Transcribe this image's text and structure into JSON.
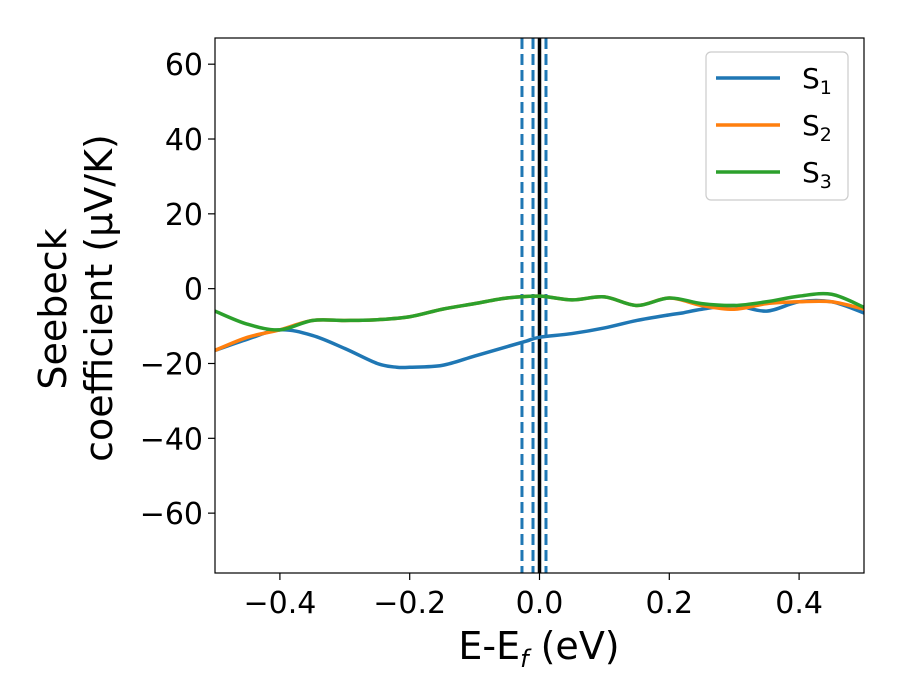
{
  "chart_data": {
    "type": "line",
    "xlabel_parts": [
      "E-E",
      "f",
      " (eV)"
    ],
    "ylabel_lines": [
      "Seebeck",
      "coefficient  (μV/K)"
    ],
    "xlim": [
      -0.5,
      0.5
    ],
    "ylim": [
      -76,
      67
    ],
    "xticks": [
      -0.4,
      -0.2,
      0.0,
      0.2,
      0.4
    ],
    "xtick_labels": [
      "−0.4",
      "−0.2",
      "0.0",
      "0.2",
      "0.4"
    ],
    "yticks": [
      -60,
      -40,
      -20,
      0,
      20,
      40,
      60
    ],
    "ytick_labels": [
      "−60",
      "−40",
      "−20",
      "0",
      "20",
      "40",
      "60"
    ],
    "grid": false,
    "legend_position": "top-right",
    "vlines": [
      {
        "x": 0.0,
        "style": "solid",
        "color": "#000000"
      },
      {
        "x": -0.027,
        "style": "dashed",
        "color": "#1f77b4"
      },
      {
        "x": -0.01,
        "style": "dashed",
        "color": "#1f77b4"
      },
      {
        "x": 0.01,
        "style": "dashed",
        "color": "#1f77b4"
      }
    ],
    "series": [
      {
        "name": "S",
        "subscript": "1",
        "color": "#1f77b4",
        "x": [
          -0.5,
          -0.45,
          -0.4,
          -0.35,
          -0.3,
          -0.25,
          -0.22,
          -0.2,
          -0.15,
          -0.1,
          -0.05,
          -0.02,
          0.0,
          0.05,
          0.1,
          0.15,
          0.2,
          0.22,
          0.25,
          0.3,
          0.35,
          0.4,
          0.45,
          0.5
        ],
        "y": [
          -16.5,
          -13.5,
          -11.0,
          -12.5,
          -16.0,
          -20.0,
          -21.0,
          -21.0,
          -20.5,
          -18.0,
          -15.5,
          -14.0,
          -13.0,
          -12.0,
          -10.5,
          -8.5,
          -7.0,
          -6.5,
          -5.5,
          -4.5,
          -6.0,
          -3.5,
          -3.5,
          -6.5
        ]
      },
      {
        "name": "S",
        "subscript": "2",
        "color": "#ff7f0e",
        "x": [
          -0.5,
          -0.45,
          -0.4,
          -0.35,
          -0.3,
          -0.25,
          -0.2,
          -0.15,
          -0.1,
          -0.05,
          0.0,
          0.05,
          0.1,
          0.15,
          0.2,
          0.25,
          0.3,
          0.35,
          0.4,
          0.45,
          0.5
        ],
        "y": [
          -16.5,
          -13.0,
          -11.0,
          -8.5,
          -8.5,
          -8.3,
          -7.5,
          -5.5,
          -4.0,
          -2.5,
          -2.0,
          -3.0,
          -2.2,
          -4.5,
          -2.5,
          -4.5,
          -5.5,
          -4.0,
          -3.5,
          -3.5,
          -5.5
        ]
      },
      {
        "name": "S",
        "subscript": "3",
        "color": "#2ca02c",
        "x": [
          -0.5,
          -0.45,
          -0.4,
          -0.35,
          -0.3,
          -0.25,
          -0.2,
          -0.15,
          -0.1,
          -0.05,
          0.0,
          0.05,
          0.1,
          0.15,
          0.2,
          0.25,
          0.3,
          0.35,
          0.4,
          0.45,
          0.5
        ],
        "y": [
          -6.0,
          -9.5,
          -11.0,
          -8.5,
          -8.5,
          -8.3,
          -7.5,
          -5.5,
          -4.0,
          -2.5,
          -2.0,
          -3.0,
          -2.2,
          -4.5,
          -2.5,
          -4.0,
          -4.5,
          -3.5,
          -2.0,
          -1.5,
          -5.0
        ]
      }
    ]
  }
}
